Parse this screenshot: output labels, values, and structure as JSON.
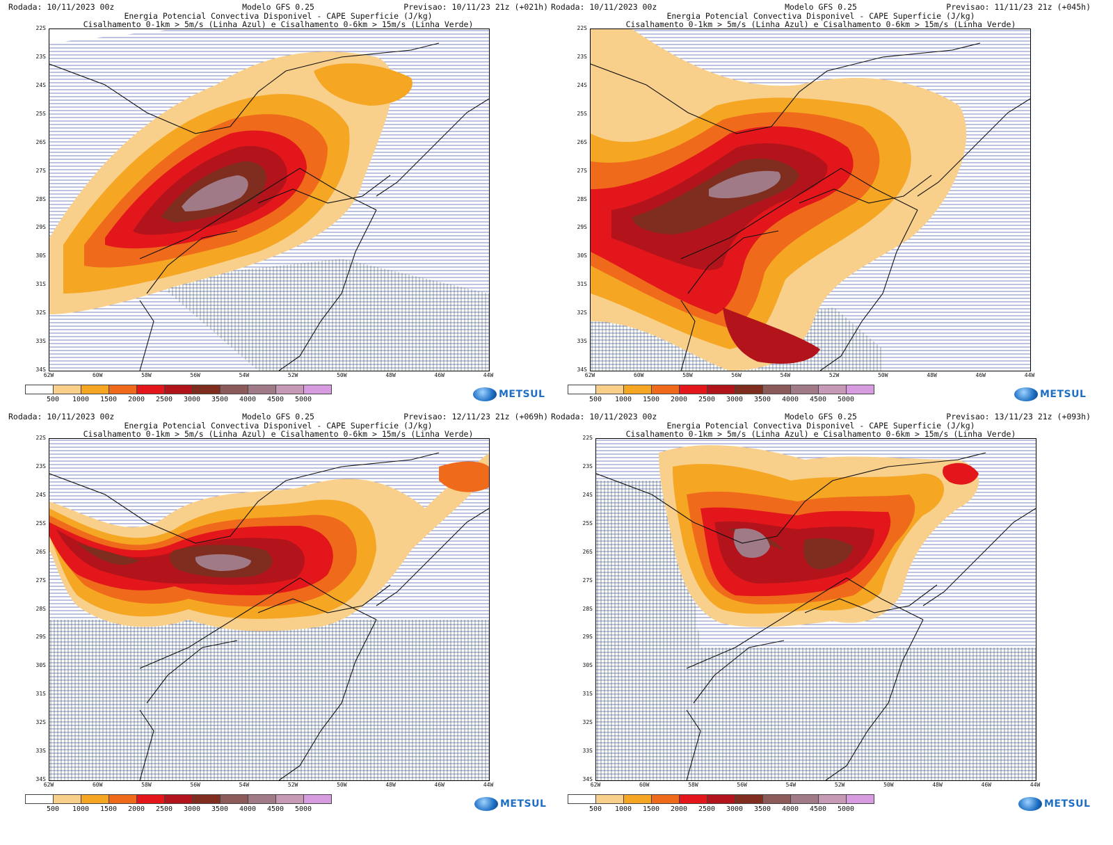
{
  "run_label": "Rodada: 10/11/2023 00z",
  "model_label": "Modelo GFS 0.25",
  "title_line1": "Energia Potencial Convectiva Disponivel - CAPE Superficie (J/kg)",
  "title_line2": "Cisalhamento 0-1km > 5m/s (Linha Azul) e Cisalhamento 0-6km > 15m/s (Linha Verde)",
  "logo_text": "METSUL",
  "lat_labels": [
    "22S",
    "23S",
    "24S",
    "25S",
    "26S",
    "27S",
    "28S",
    "29S",
    "30S",
    "31S",
    "32S",
    "33S",
    "34S"
  ],
  "lon_labels": [
    "62W",
    "60W",
    "58W",
    "56W",
    "54W",
    "52W",
    "50W",
    "48W",
    "46W",
    "44W"
  ],
  "colorbar": {
    "ticks": [
      "500",
      "1000",
      "1500",
      "2000",
      "2500",
      "3000",
      "3500",
      "4000",
      "4500",
      "5000"
    ],
    "colors": [
      "#ffffff",
      "#f9d08b",
      "#f5a623",
      "#ef6b1b",
      "#e3161b",
      "#b3141b",
      "#7e2d1f",
      "#8d5a5a",
      "#a07a86",
      "#c69ab4",
      "#d79ce0"
    ]
  },
  "panels": [
    {
      "forecast": "Previsao: 10/11/23 21z (+021h)"
    },
    {
      "forecast": "Previsao: 11/11/23 21z (+045h)"
    },
    {
      "forecast": "Previsao: 12/11/23 21z (+069h)"
    },
    {
      "forecast": "Previsao: 13/11/23 21z (+093h)"
    }
  ]
}
